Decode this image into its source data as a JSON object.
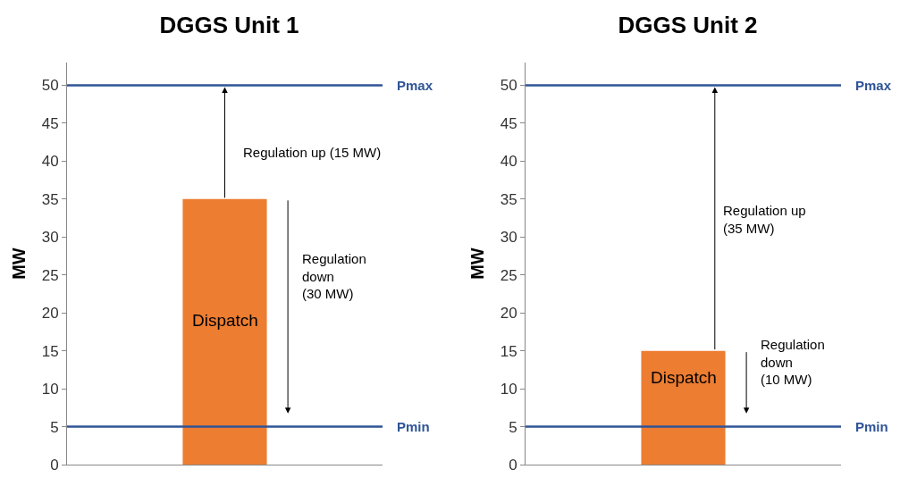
{
  "chart_data": [
    {
      "type": "bar",
      "title": "DGGS Unit 1",
      "ylabel": "MW",
      "categories": [
        null
      ],
      "values": [
        35
      ],
      "color": "#ed7d31",
      "ylim": [
        0,
        53
      ],
      "yticks": [
        0,
        5,
        10,
        15,
        20,
        25,
        30,
        35,
        40,
        45,
        50
      ],
      "grid": false,
      "tick_labels": "y",
      "ref_lines": [
        {
          "axis": "y",
          "value": 50,
          "label": "Pmax",
          "color": "#2f5597"
        },
        {
          "axis": "y",
          "value": 5,
          "label": "Pmin",
          "color": "#2f5597"
        }
      ],
      "annotations": [
        "Dispatch",
        "Regulation up (15 MW)",
        "Regulation\ndown\n(30 MW)"
      ]
    },
    {
      "type": "bar",
      "title": "DGGS Unit 2",
      "ylabel": "MW",
      "categories": [
        null
      ],
      "values": [
        15
      ],
      "color": "#ed7d31",
      "ylim": [
        0,
        53
      ],
      "yticks": [
        0,
        5,
        10,
        15,
        20,
        25,
        30,
        35,
        40,
        45,
        50
      ],
      "grid": false,
      "tick_labels": "y",
      "ref_lines": [
        {
          "axis": "y",
          "value": 50,
          "label": "Pmax",
          "color": "#2f5597"
        },
        {
          "axis": "y",
          "value": 5,
          "label": "Pmin",
          "color": "#2f5597"
        }
      ],
      "annotations": [
        "Dispatch",
        "Regulation up\n(35 MW)",
        "Regulation\ndown\n(10 MW)"
      ]
    }
  ]
}
